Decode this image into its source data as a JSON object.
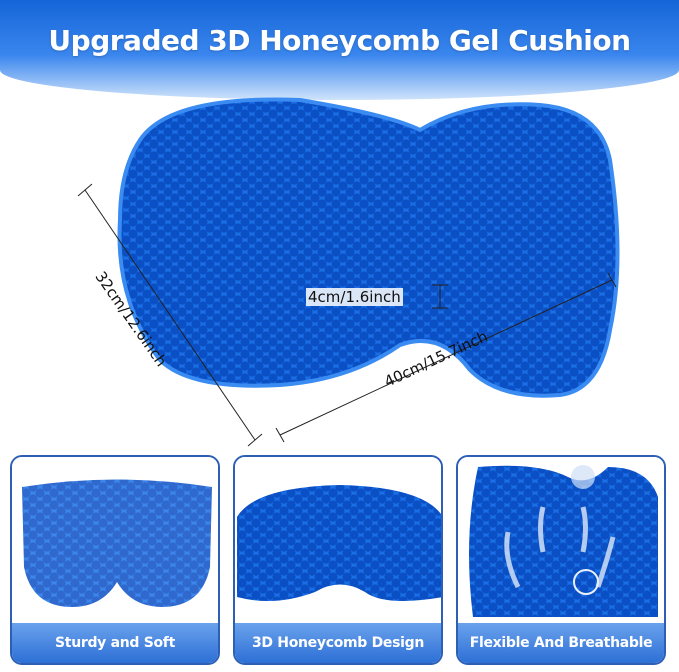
{
  "title": "Upgraded 3D Honeycomb Gel Cushion",
  "dimensions": {
    "depth": "32cm/12.6inch",
    "width": "40cm/15.7inch",
    "thickness": "4cm/1.6inch"
  },
  "panels": [
    {
      "label": "Sturdy and Soft"
    },
    {
      "label": "3D Honeycomb Design"
    },
    {
      "label": "Flexible And Breathable"
    }
  ],
  "colors": {
    "brand": "#1565d8",
    "gel": "#1e7ef0",
    "border": "#2d5fb5"
  }
}
